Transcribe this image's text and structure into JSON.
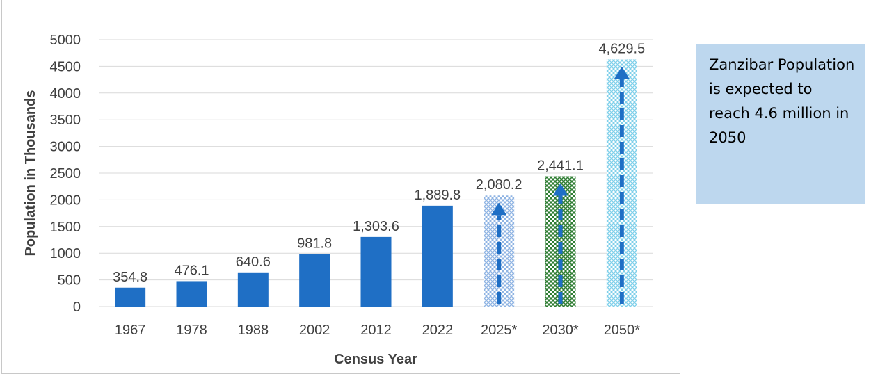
{
  "chart_data": {
    "type": "bar",
    "title": "",
    "xlabel": "Census Year",
    "ylabel": "Population in Thousands",
    "ylim": [
      0,
      5000
    ],
    "yticks": [
      0,
      500,
      1000,
      1500,
      2000,
      2500,
      3000,
      3500,
      4000,
      4500,
      5000
    ],
    "grid": true,
    "categories": [
      "1967",
      "1978",
      "1988",
      "2002",
      "2012",
      "2022",
      "2025*",
      "2030*",
      "2050*"
    ],
    "values": [
      354.8,
      476.1,
      640.6,
      981.8,
      1303.6,
      1889.8,
      2080.2,
      2441.1,
      4629.5
    ],
    "data_labels": [
      "354.8",
      "476.1",
      "640.6",
      "981.8",
      "1,303.6",
      "1,889.8",
      "2,080.2",
      "2,441.1",
      "4,629.5"
    ],
    "bar_styles": [
      "solid",
      "solid",
      "solid",
      "solid",
      "solid",
      "solid",
      "pattern-blue",
      "pattern-green",
      "pattern-cyan"
    ],
    "arrows": [
      false,
      false,
      false,
      false,
      false,
      false,
      true,
      true,
      true
    ],
    "colors": {
      "bar": "#1f6fc5",
      "pattern_blue": "#8fb4e3",
      "pattern_green": "#2e7d32",
      "pattern_cyan": "#7fd0ea",
      "arrow": "#1f6fc5",
      "grid": "#d9d9d9",
      "text": "#404040"
    }
  },
  "callout": {
    "text": "Zanzibar Population is expected to reach 4.6 million in 2050",
    "background": "#bdd7ee"
  }
}
